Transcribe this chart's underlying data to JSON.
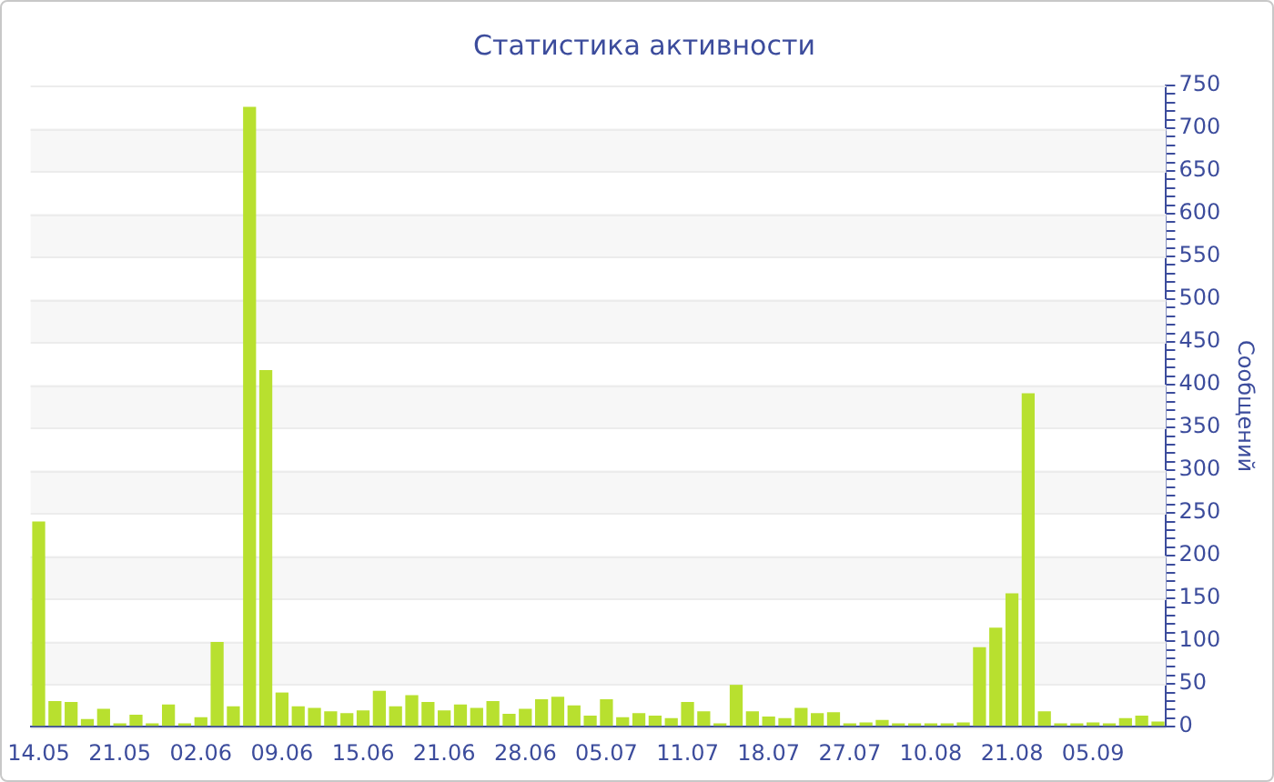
{
  "chart_data": {
    "type": "bar",
    "title": "Статистика активности",
    "ylabel": "Сообщений",
    "categories": [
      "14.05",
      null,
      null,
      null,
      null,
      "21.05",
      null,
      null,
      null,
      null,
      "02.06",
      null,
      null,
      null,
      null,
      "09.06",
      null,
      null,
      null,
      null,
      "15.06",
      null,
      null,
      null,
      null,
      "21.06",
      null,
      null,
      null,
      null,
      "28.06",
      null,
      null,
      null,
      null,
      "05.07",
      null,
      null,
      null,
      null,
      "11.07",
      null,
      null,
      null,
      null,
      "18.07",
      null,
      null,
      null,
      null,
      "27.07",
      null,
      null,
      null,
      null,
      "10.08",
      null,
      null,
      null,
      null,
      "21.08",
      null,
      null,
      null,
      null,
      "05.09",
      null,
      null,
      null,
      null
    ],
    "values": [
      240,
      30,
      29,
      9,
      21,
      4,
      14,
      4,
      26,
      4,
      11,
      99,
      24,
      725,
      417,
      40,
      24,
      22,
      18,
      16,
      19,
      42,
      24,
      37,
      29,
      19,
      26,
      22,
      30,
      15,
      21,
      32,
      35,
      25,
      13,
      32,
      11,
      16,
      13,
      10,
      29,
      18,
      4,
      49,
      18,
      12,
      10,
      22,
      16,
      17,
      4,
      5,
      8,
      4,
      4,
      4,
      4,
      5,
      93,
      116,
      156,
      390,
      18,
      4,
      4,
      5,
      4,
      10,
      13,
      6
    ],
    "color": "#b8e02f",
    "ylim": [
      0,
      750
    ],
    "yticks": [
      0,
      {
        "value": 10,
        "label": null
      },
      {
        "value": 20,
        "label": null
      },
      {
        "value": 30,
        "label": null
      },
      {
        "value": 40,
        "label": null
      },
      50,
      {
        "value": 60,
        "label": null
      },
      {
        "value": 70,
        "label": null
      },
      {
        "value": 80,
        "label": null
      },
      {
        "value": 90,
        "label": null
      },
      100,
      {
        "value": 110,
        "label": null
      },
      {
        "value": 120,
        "label": null
      },
      {
        "value": 130,
        "label": null
      },
      {
        "value": 140,
        "label": null
      },
      150,
      {
        "value": 160,
        "label": null
      },
      {
        "value": 170,
        "label": null
      },
      {
        "value": 180,
        "label": null
      },
      {
        "value": 190,
        "label": null
      },
      200,
      {
        "value": 210,
        "label": null
      },
      {
        "value": 220,
        "label": null
      },
      {
        "value": 230,
        "label": null
      },
      {
        "value": 240,
        "label": null
      },
      250,
      {
        "value": 260,
        "label": null
      },
      {
        "value": 270,
        "label": null
      },
      {
        "value": 280,
        "label": null
      },
      {
        "value": 290,
        "label": null
      },
      300,
      {
        "value": 310,
        "label": null
      },
      {
        "value": 320,
        "label": null
      },
      {
        "value": 330,
        "label": null
      },
      {
        "value": 340,
        "label": null
      },
      350,
      {
        "value": 360,
        "label": null
      },
      {
        "value": 370,
        "label": null
      },
      {
        "value": 380,
        "label": null
      },
      {
        "value": 390,
        "label": null
      },
      400,
      {
        "value": 410,
        "label": null
      },
      {
        "value": 420,
        "label": null
      },
      {
        "value": 430,
        "label": null
      },
      {
        "value": 440,
        "label": null
      },
      450,
      {
        "value": 460,
        "label": null
      },
      {
        "value": 470,
        "label": null
      },
      {
        "value": 480,
        "label": null
      },
      {
        "value": 490,
        "label": null
      },
      500,
      {
        "value": 510,
        "label": null
      },
      {
        "value": 520,
        "label": null
      },
      {
        "value": 530,
        "label": null
      },
      {
        "value": 540,
        "label": null
      },
      550,
      {
        "value": 560,
        "label": null
      },
      {
        "value": 570,
        "label": null
      },
      {
        "value": 580,
        "label": null
      },
      {
        "value": 590,
        "label": null
      },
      600,
      {
        "value": 610,
        "label": null
      },
      {
        "value": 620,
        "label": null
      },
      {
        "value": 630,
        "label": null
      },
      {
        "value": 640,
        "label": null
      },
      650,
      {
        "value": 660,
        "label": null
      },
      {
        "value": 670,
        "label": null
      },
      {
        "value": 680,
        "label": null
      },
      {
        "value": 690,
        "label": null
      },
      700,
      {
        "value": 710,
        "label": null
      },
      {
        "value": 720,
        "label": null
      },
      {
        "value": 730,
        "label": null
      },
      {
        "value": 740,
        "label": null
      },
      750
    ],
    "grid": "y"
  }
}
